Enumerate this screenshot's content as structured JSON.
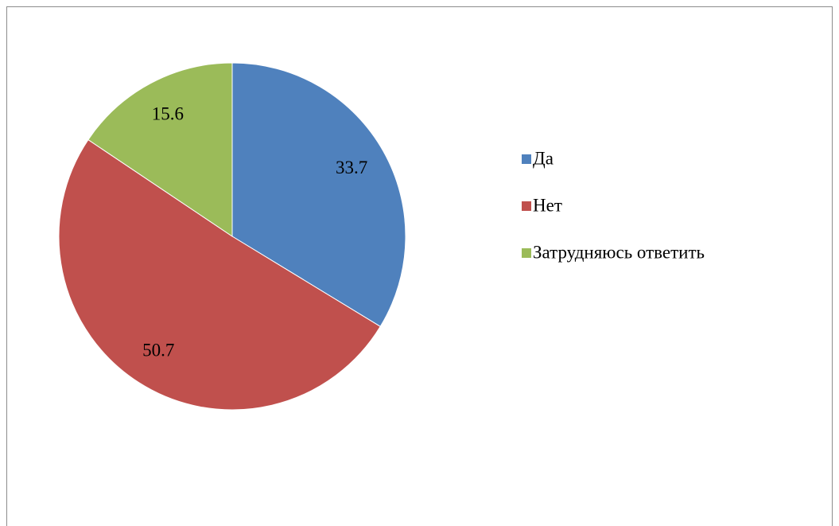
{
  "chart_data": {
    "type": "pie",
    "categories": [
      "Да",
      "Нет",
      "Затрудняюсь ответить"
    ],
    "values": [
      33.7,
      50.7,
      15.6
    ],
    "colors": [
      "#4f81bd",
      "#c0504d",
      "#9bbb59"
    ],
    "legend": "right"
  }
}
